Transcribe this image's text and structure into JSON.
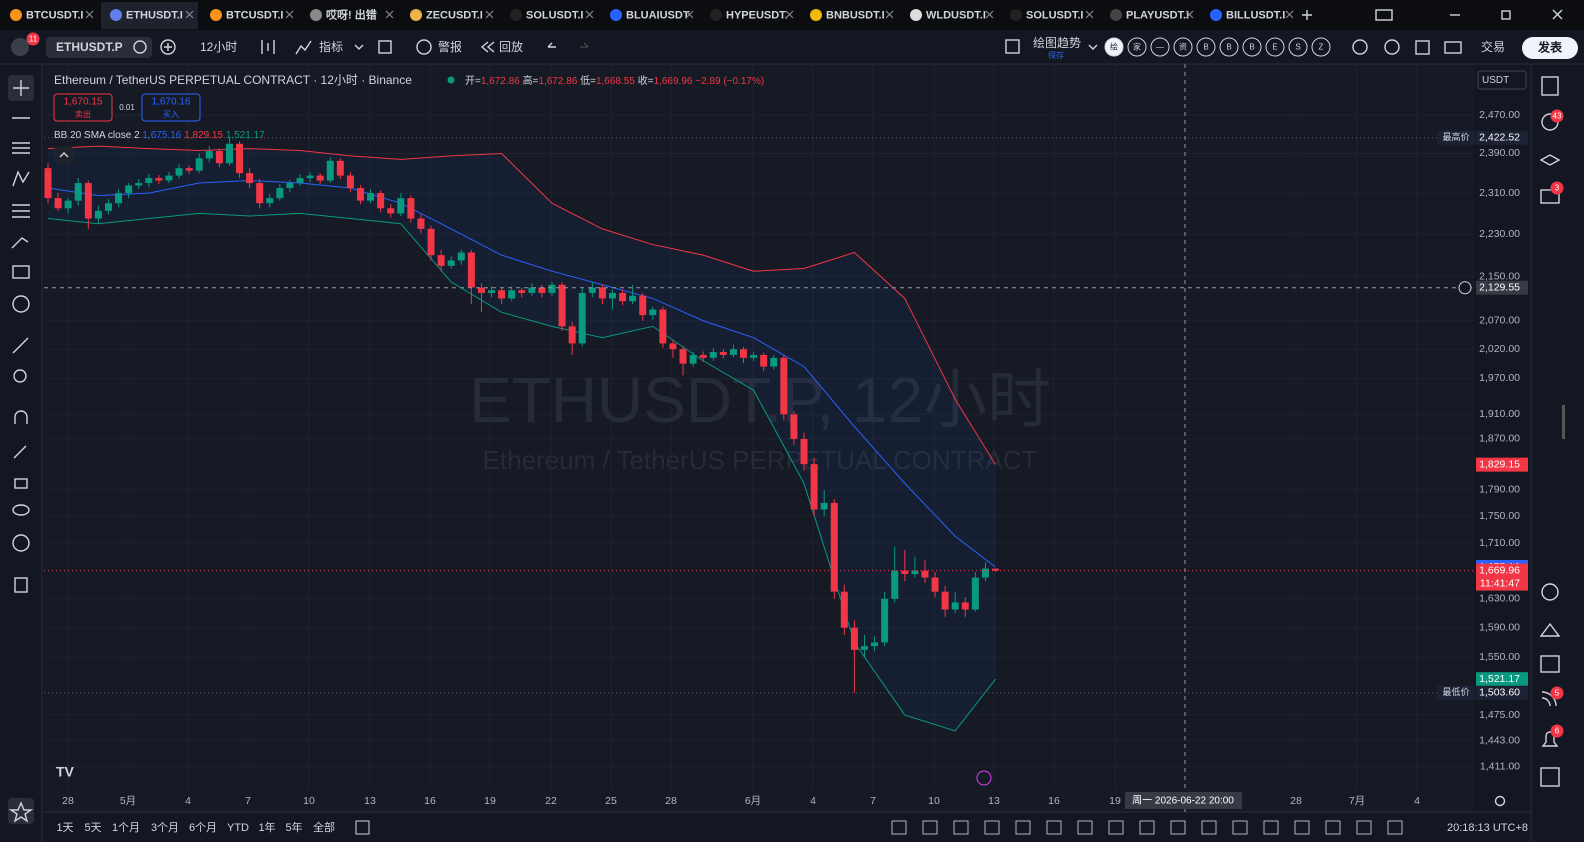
{
  "tabs": [
    "BTCUSDT.I",
    "ETHUSDT.I",
    "BTCUSDT.I",
    "哎呀! 出错",
    "ZECUSDT.I",
    "SOLUSDT.I",
    "BLUAIUSDT",
    "HYPEUSDT.",
    "BNBUSDT.I",
    "WLDUSDT.I",
    "SOLUSDT.I",
    "PLAYUSDT.I",
    "BILLUSDT.I"
  ],
  "toolbar": {
    "badge": "11",
    "symbol": "ETHUSDT.P",
    "interval": "12小时",
    "indicators": "指标",
    "alert": "警报",
    "replay": "回放",
    "draw_trend": "绘图趋势",
    "save": "保存",
    "trade": "交易",
    "publish": "发表",
    "quick_buttons": [
      "绘",
      "家",
      "—",
      "资",
      "B",
      "B",
      "B",
      "E",
      "S",
      "Z"
    ]
  },
  "sidebar_badges": [
    "43",
    "3",
    "5",
    "6"
  ],
  "chart_data": {
    "type": "candlestick",
    "title": "Ethereum / TetherUS PERPETUAL CONTRACT · 12小时 · Binance",
    "watermark": "ETHUSDT.P, 12小时",
    "watermark_sub": "Ethereum / TetherUS PERPETUAL CONTRACT",
    "ohlc": [
      {
        "key": "开=",
        "value": "1,672.86"
      },
      {
        "key": "高=",
        "value": "1,672.86"
      },
      {
        "key": "低=",
        "value": "1,668.55"
      },
      {
        "key": "收=",
        "value": "1,669.96"
      }
    ],
    "change": "−2.89 (−0.17%)",
    "sell": {
      "price": "1,670.15",
      "label": "卖出"
    },
    "spread": "0.01",
    "buy": {
      "price": "1,670.16",
      "label": "买入"
    },
    "currency": "USDT",
    "log_scale": true,
    "grid": true,
    "up_color": "#089981",
    "down_color": "#f23645",
    "ylim": [
      1383,
      2581
    ],
    "yticks": [
      {
        "value": 2470,
        "label": "2,470.00"
      },
      {
        "value": 2390,
        "label": "2,390.00"
      },
      {
        "value": 2310,
        "label": "2,310.00"
      },
      {
        "value": 2230,
        "label": "2,230.00"
      },
      {
        "value": 2150,
        "label": "2,150.00"
      },
      {
        "value": 2070,
        "label": "2,070.00"
      },
      {
        "value": 2020,
        "label": "2,020.00"
      },
      {
        "value": 1970,
        "label": "1,970.00"
      },
      {
        "value": 1910,
        "label": "1,910.00"
      },
      {
        "value": 1870,
        "label": "1,870.00"
      },
      {
        "value": 1790,
        "label": "1,790.00"
      },
      {
        "value": 1750,
        "label": "1,750.00"
      },
      {
        "value": 1710,
        "label": "1,710.00"
      },
      {
        "value": 1630,
        "label": "1,630.00"
      },
      {
        "value": 1590,
        "label": "1,590.00"
      },
      {
        "value": 1550,
        "label": "1,550.00"
      },
      {
        "value": 1475,
        "label": "1,475.00"
      },
      {
        "value": 1443,
        "label": "1,443.00"
      },
      {
        "value": 1411,
        "label": "1,411.00"
      }
    ],
    "time_labels": [
      "28",
      "5月",
      "4",
      "7",
      "10",
      "13",
      "16",
      "19",
      "22",
      "25",
      "28",
      "6月",
      "4",
      "7",
      "10",
      "13",
      "16",
      "19",
      "28",
      "7月",
      "4"
    ],
    "crosshair": {
      "value": 2129.55,
      "label": "2,129.55",
      "time": "周一 2026-06-22  20:00"
    },
    "price_tags": [
      {
        "value": 2422.52,
        "label": "2,422.52",
        "caption": "最高价",
        "color": "#1c2233"
      },
      {
        "value": 1829.15,
        "label": "1,829.15",
        "color": "#f23645"
      },
      {
        "value": 1675.16,
        "label": "1,675.16",
        "color": "#2962ff"
      },
      {
        "value": 1669.96,
        "label": "1,669.96",
        "color": "#f23645"
      },
      {
        "value": 1521.17,
        "label": "1,521.17",
        "color": "#089981"
      },
      {
        "value": 1503.6,
        "label": "1,503.60",
        "caption": "最低价",
        "color": "#1c2233"
      }
    ],
    "countdown": "11:41:47",
    "candles": [
      [
        2360,
        2370,
        2290,
        2300
      ],
      [
        2300,
        2310,
        2275,
        2280
      ],
      [
        2280,
        2300,
        2270,
        2295
      ],
      [
        2295,
        2340,
        2285,
        2330
      ],
      [
        2330,
        2335,
        2240,
        2260
      ],
      [
        2260,
        2285,
        2250,
        2275
      ],
      [
        2275,
        2298,
        2268,
        2290
      ],
      [
        2290,
        2318,
        2282,
        2310
      ],
      [
        2310,
        2330,
        2300,
        2325
      ],
      [
        2325,
        2338,
        2318,
        2330
      ],
      [
        2330,
        2348,
        2322,
        2340
      ],
      [
        2340,
        2346,
        2328,
        2335
      ],
      [
        2335,
        2352,
        2330,
        2345
      ],
      [
        2345,
        2368,
        2338,
        2360
      ],
      [
        2360,
        2366,
        2348,
        2355
      ],
      [
        2355,
        2390,
        2350,
        2380
      ],
      [
        2380,
        2405,
        2372,
        2395
      ],
      [
        2395,
        2400,
        2362,
        2370
      ],
      [
        2370,
        2422.52,
        2365,
        2410
      ],
      [
        2410,
        2415,
        2340,
        2350
      ],
      [
        2350,
        2360,
        2320,
        2330
      ],
      [
        2330,
        2338,
        2280,
        2290
      ],
      [
        2290,
        2308,
        2282,
        2300
      ],
      [
        2300,
        2328,
        2295,
        2320
      ],
      [
        2320,
        2336,
        2312,
        2330
      ],
      [
        2330,
        2348,
        2324,
        2340
      ],
      [
        2340,
        2352,
        2332,
        2345
      ],
      [
        2345,
        2350,
        2328,
        2335
      ],
      [
        2335,
        2382,
        2330,
        2375
      ],
      [
        2375,
        2380,
        2338,
        2345
      ],
      [
        2345,
        2352,
        2312,
        2320
      ],
      [
        2320,
        2326,
        2288,
        2295
      ],
      [
        2295,
        2318,
        2290,
        2310
      ],
      [
        2310,
        2315,
        2272,
        2280
      ],
      [
        2280,
        2288,
        2262,
        2270
      ],
      [
        2270,
        2310,
        2265,
        2300
      ],
      [
        2300,
        2305,
        2252,
        2260
      ],
      [
        2260,
        2268,
        2232,
        2240
      ],
      [
        2240,
        2246,
        2180,
        2190
      ],
      [
        2190,
        2200,
        2160,
        2170
      ],
      [
        2170,
        2188,
        2165,
        2180
      ],
      [
        2180,
        2200,
        2172,
        2195
      ],
      [
        2195,
        2200,
        2100,
        2130
      ],
      [
        2130,
        2138,
        2085,
        2120
      ],
      [
        2120,
        2132,
        2112,
        2125
      ],
      [
        2125,
        2130,
        2100,
        2110
      ],
      [
        2110,
        2132,
        2105,
        2125
      ],
      [
        2125,
        2130,
        2112,
        2120
      ],
      [
        2120,
        2138,
        2115,
        2130
      ],
      [
        2130,
        2135,
        2112,
        2120
      ],
      [
        2120,
        2140,
        2115,
        2135
      ],
      [
        2135,
        2140,
        2052,
        2060
      ],
      [
        2060,
        2068,
        2010,
        2030
      ],
      [
        2030,
        2128,
        2025,
        2120
      ],
      [
        2120,
        2140,
        2112,
        2130
      ],
      [
        2130,
        2136,
        2100,
        2110
      ],
      [
        2110,
        2126,
        2090,
        2120
      ],
      [
        2120,
        2125,
        2098,
        2105
      ],
      [
        2105,
        2135,
        2100,
        2115
      ],
      [
        2115,
        2120,
        2070,
        2080
      ],
      [
        2080,
        2095,
        2072,
        2090
      ],
      [
        2090,
        2095,
        2022,
        2030
      ],
      [
        2030,
        2036,
        2005,
        2020
      ],
      [
        2020,
        2025,
        1975,
        1995
      ],
      [
        1995,
        2015,
        1990,
        2010
      ],
      [
        2010,
        2016,
        1998,
        2005
      ],
      [
        2005,
        2022,
        2000,
        2015
      ],
      [
        2015,
        2020,
        2004,
        2010
      ],
      [
        2010,
        2028,
        2006,
        2020
      ],
      [
        2020,
        2024,
        1996,
        2005
      ],
      [
        2005,
        2015,
        2000,
        2010
      ],
      [
        2010,
        2014,
        1982,
        1990
      ],
      [
        1990,
        2010,
        1985,
        2005
      ],
      [
        2005,
        2010,
        1900,
        1910
      ],
      [
        1910,
        1915,
        1860,
        1870
      ],
      [
        1870,
        1880,
        1820,
        1830
      ],
      [
        1830,
        1840,
        1750,
        1760
      ],
      [
        1760,
        1790,
        1750,
        1770
      ],
      [
        1770,
        1776,
        1630,
        1640
      ],
      [
        1640,
        1650,
        1580,
        1590
      ],
      [
        1590,
        1600,
        1503.6,
        1560
      ],
      [
        1560,
        1580,
        1550,
        1565
      ],
      [
        1565,
        1578,
        1558,
        1570
      ],
      [
        1570,
        1640,
        1565,
        1630
      ],
      [
        1630,
        1705,
        1625,
        1670
      ],
      [
        1670,
        1700,
        1655,
        1665
      ],
      [
        1665,
        1690,
        1660,
        1670
      ],
      [
        1670,
        1685,
        1652,
        1660
      ],
      [
        1660,
        1668,
        1632,
        1640
      ],
      [
        1640,
        1648,
        1605,
        1615
      ],
      [
        1615,
        1640,
        1610,
        1625
      ],
      [
        1625,
        1632,
        1605,
        1615
      ],
      [
        1615,
        1668,
        1612,
        1660
      ],
      [
        1660,
        1682,
        1655,
        1672.86
      ],
      [
        1672.86,
        1672.86,
        1668.55,
        1669.96
      ]
    ],
    "bb": {
      "name": "BB 20 SMA close 2",
      "last_labels": [
        "1,675.16",
        "1,829.15",
        "1,521.17"
      ],
      "x": [
        0,
        5,
        10,
        15,
        20,
        25,
        30,
        35,
        40,
        45,
        50,
        55,
        60,
        65,
        70,
        75,
        80,
        85,
        90,
        94
      ],
      "middle": [
        2320,
        2305,
        2310,
        2330,
        2335,
        2330,
        2320,
        2290,
        2240,
        2190,
        2160,
        2135,
        2110,
        2070,
        2040,
        1990,
        1890,
        1800,
        1720,
        1675.16
      ],
      "upper": [
        2400,
        2405,
        2400,
        2396,
        2400,
        2396,
        2385,
        2378,
        2385,
        2390,
        2290,
        2240,
        2210,
        2190,
        2160,
        2165,
        2195,
        2110,
        1935,
        1829.15
      ],
      "lower": [
        2260,
        2250,
        2260,
        2270,
        2265,
        2270,
        2260,
        2250,
        2140,
        2085,
        2060,
        2040,
        2060,
        2000,
        1950,
        1800,
        1570,
        1475,
        1455,
        1521.17
      ],
      "colors": {
        "middle": "#2962ff",
        "upper": "#f23645",
        "lower": "#089981"
      }
    }
  },
  "bottom": {
    "ranges": [
      "1天",
      "5天",
      "1个月",
      "3个月",
      "6个月",
      "YTD",
      "1年",
      "5年",
      "全部"
    ],
    "clock": "20:18:13 UTC+8"
  }
}
